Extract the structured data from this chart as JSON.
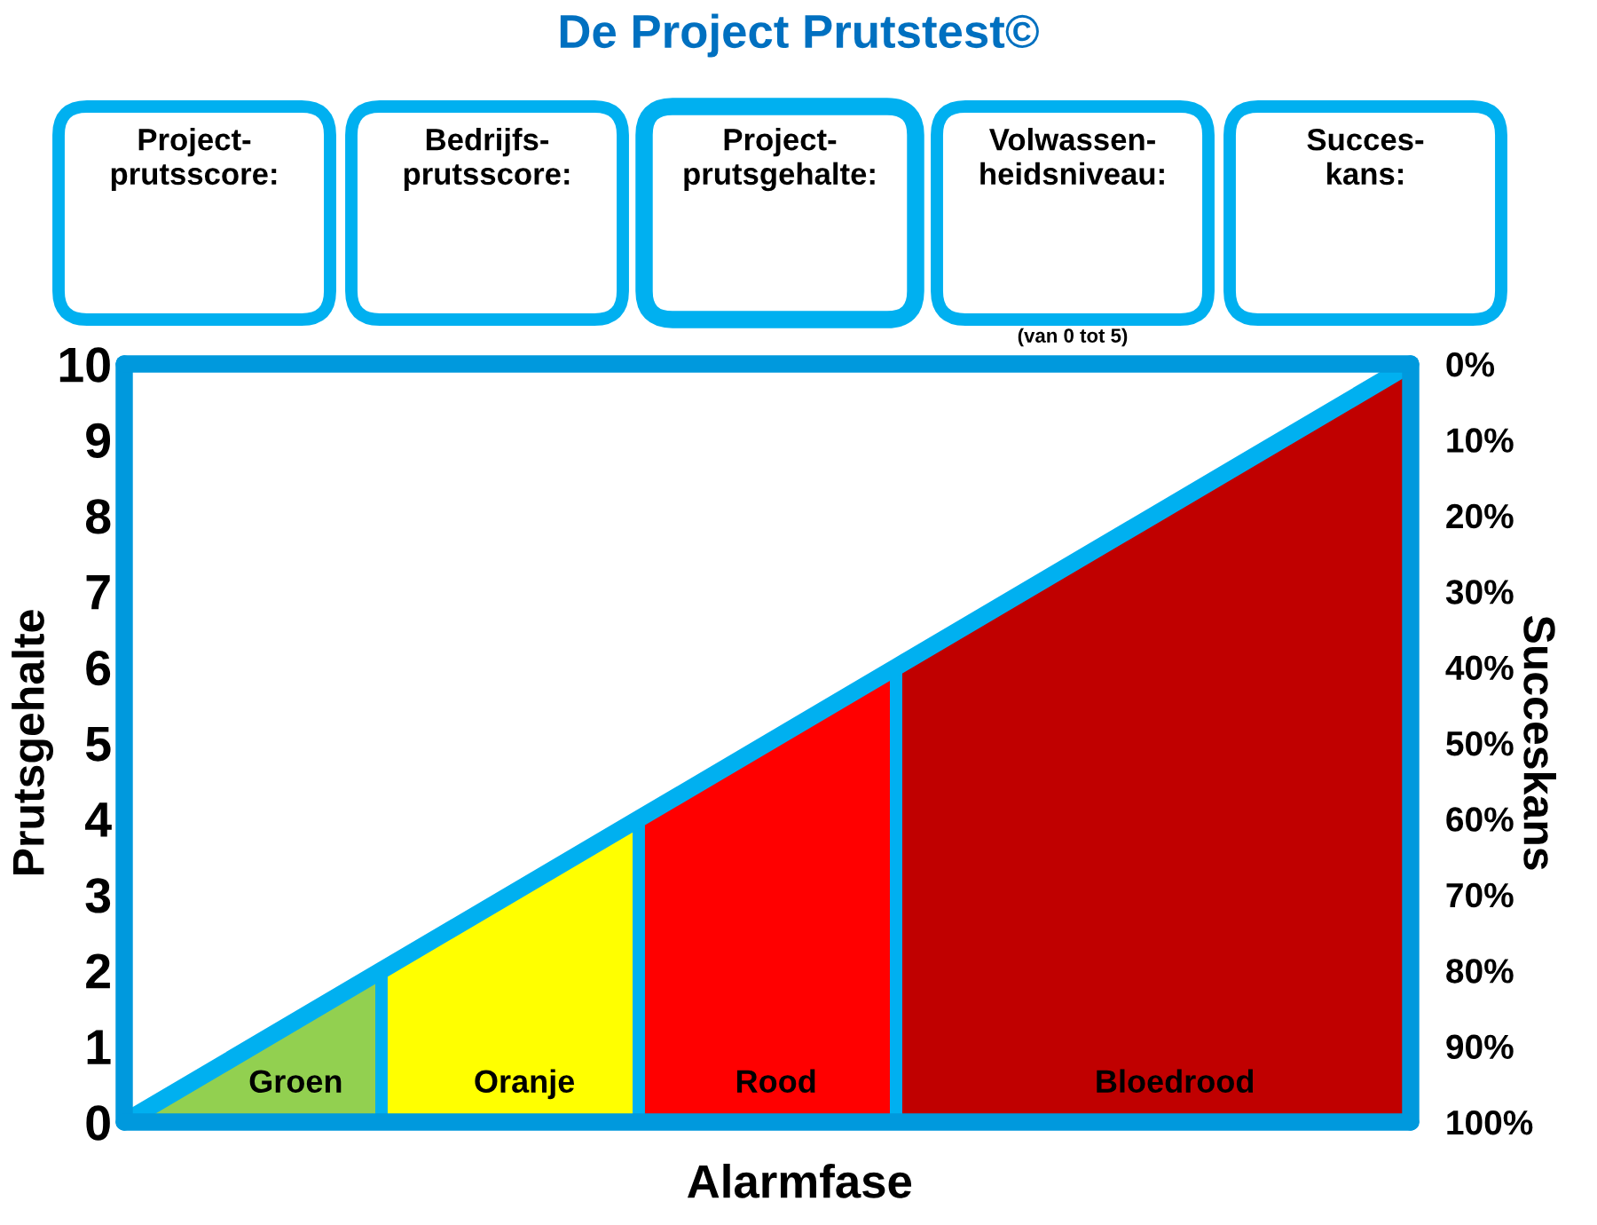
{
  "chart_data": {
    "type": "area",
    "title": "De Project Prutstest©",
    "annotations": [
      "Project-\nprutsscore:",
      "Bedrijfs-\nprutsscore:",
      "Project-\nprutsgehalte:",
      "Volwassen-\nheidsniveau:",
      "Succes-\nkans:",
      "(van 0 tot 5)"
    ],
    "xlabel": "Alarmfase",
    "ylabel": "Prutsgehalte",
    "y2label": "Succeskans",
    "categories": [
      null,
      null,
      null,
      null,
      null,
      null
    ],
    "ylim": [
      0,
      10
    ],
    "yticks": [
      0,
      1,
      2,
      3,
      4,
      5,
      6,
      7,
      8,
      9,
      10
    ],
    "y2lim": [
      100,
      0
    ],
    "y2ticks": [
      {
        "value": 0,
        "label": "0%"
      },
      {
        "value": 10,
        "label": "10%"
      },
      {
        "value": 20,
        "label": "20%"
      },
      {
        "value": 30,
        "label": "30%"
      },
      {
        "value": 40,
        "label": "40%"
      },
      {
        "value": 50,
        "label": "50%"
      },
      {
        "value": 60,
        "label": "60%"
      },
      {
        "value": 70,
        "label": "70%"
      },
      {
        "value": 80,
        "label": "80%"
      },
      {
        "value": 90,
        "label": "90%"
      },
      {
        "value": 100,
        "label": "100%"
      }
    ],
    "series": [
      {
        "name": "Groen",
        "color": "#92d050",
        "values": [
          0,
          2,
          null,
          null,
          null,
          null
        ]
      },
      {
        "name": "Oranje",
        "color": "#ffff00",
        "values": [
          null,
          2,
          4,
          null,
          null,
          null
        ]
      },
      {
        "name": "Rood",
        "color": "#ff0000",
        "values": [
          null,
          null,
          4,
          6,
          null,
          null
        ]
      },
      {
        "name": "Bloedrood",
        "color": "#c00000",
        "values": [
          null,
          null,
          null,
          6,
          8,
          10
        ]
      },
      {
        "type": "line",
        "color": "#00b0f0",
        "values": [
          0,
          2,
          4,
          6,
          8,
          10
        ]
      }
    ]
  }
}
